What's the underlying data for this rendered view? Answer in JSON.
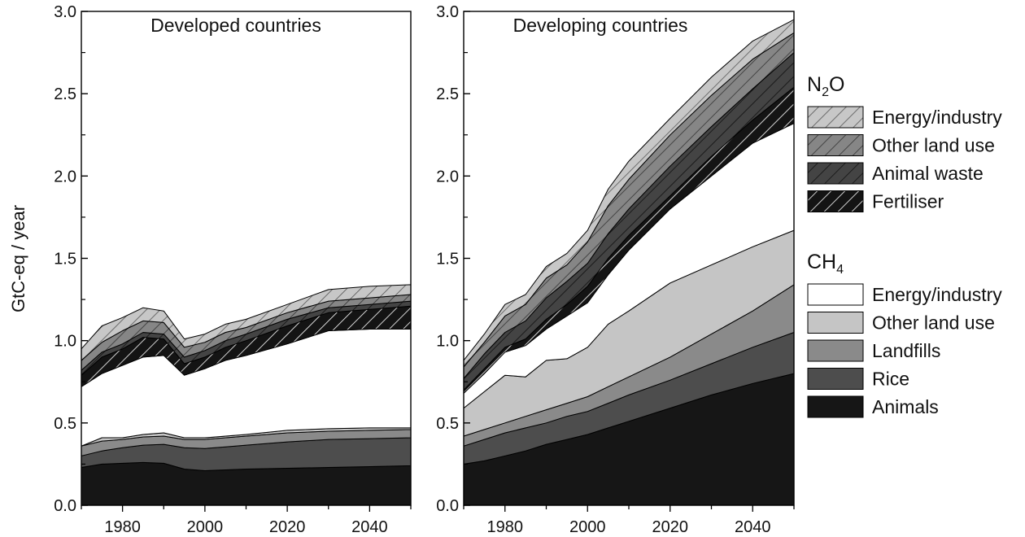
{
  "chart_data": {
    "type": "area",
    "stacked": true,
    "ylabel": "GtC-eq / year",
    "ylim": [
      0,
      3.0
    ],
    "yticks": [
      "0.0",
      "0.5",
      "1.0",
      "1.5",
      "2.0",
      "2.5",
      "3.0"
    ],
    "xlim": [
      1970,
      2050
    ],
    "xticks": [
      "1980",
      "2000",
      "2020",
      "2040"
    ],
    "x": [
      1970,
      1975,
      1980,
      1985,
      1990,
      1995,
      2000,
      2005,
      2010,
      2020,
      2030,
      2040,
      2050
    ],
    "legend": {
      "groups": [
        {
          "title_main": "N",
          "title_sub": "2",
          "title_end": "O",
          "entries": [
            "Energy/industry",
            "Other land use",
            "Animal waste",
            "Fertiliser"
          ]
        },
        {
          "title_main": "CH",
          "title_sub": "4",
          "title_end": "",
          "entries": [
            "Energy/industry",
            "Other land use",
            "Landfills",
            "Rice",
            "Animals"
          ]
        }
      ]
    },
    "series_order": [
      "CH4 Animals",
      "CH4 Rice",
      "CH4 Landfills",
      "CH4 Other land use",
      "CH4 Energy/industry",
      "N2O Fertiliser",
      "N2O Animal waste",
      "N2O Other land use",
      "N2O Energy/industry"
    ],
    "panels": [
      {
        "title": "Developed countries",
        "cumulative_tops": [
          [
            0.23,
            0.25,
            0.255,
            0.26,
            0.255,
            0.22,
            0.21,
            0.215,
            0.22,
            0.225,
            0.23,
            0.235,
            0.24
          ],
          [
            0.3,
            0.33,
            0.35,
            0.365,
            0.37,
            0.35,
            0.345,
            0.355,
            0.365,
            0.385,
            0.4,
            0.405,
            0.41
          ],
          [
            0.36,
            0.39,
            0.4,
            0.415,
            0.42,
            0.4,
            0.4,
            0.41,
            0.42,
            0.44,
            0.45,
            0.455,
            0.46
          ],
          [
            0.36,
            0.41,
            0.41,
            0.43,
            0.44,
            0.41,
            0.41,
            0.42,
            0.43,
            0.455,
            0.465,
            0.47,
            0.47
          ],
          [
            0.72,
            0.8,
            0.85,
            0.9,
            0.91,
            0.79,
            0.83,
            0.88,
            0.91,
            0.98,
            1.06,
            1.07,
            1.07
          ],
          [
            0.79,
            0.9,
            0.95,
            1.02,
            1.01,
            0.86,
            0.9,
            0.96,
            1.0,
            1.09,
            1.17,
            1.19,
            1.21
          ],
          [
            0.82,
            0.93,
            0.98,
            1.05,
            1.04,
            0.9,
            0.94,
            1.0,
            1.04,
            1.13,
            1.2,
            1.22,
            1.24
          ],
          [
            0.88,
            0.99,
            1.06,
            1.12,
            1.11,
            0.96,
            0.99,
            1.05,
            1.08,
            1.17,
            1.24,
            1.26,
            1.28
          ],
          [
            0.95,
            1.09,
            1.14,
            1.2,
            1.18,
            1.01,
            1.04,
            1.1,
            1.13,
            1.22,
            1.31,
            1.33,
            1.34
          ]
        ]
      },
      {
        "title": "Developing countries",
        "cumulative_tops": [
          [
            0.25,
            0.27,
            0.3,
            0.33,
            0.37,
            0.4,
            0.43,
            0.47,
            0.51,
            0.59,
            0.67,
            0.74,
            0.8
          ],
          [
            0.36,
            0.4,
            0.44,
            0.47,
            0.5,
            0.54,
            0.57,
            0.62,
            0.67,
            0.76,
            0.86,
            0.96,
            1.05
          ],
          [
            0.42,
            0.46,
            0.5,
            0.54,
            0.58,
            0.62,
            0.66,
            0.72,
            0.78,
            0.9,
            1.04,
            1.18,
            1.34
          ],
          [
            0.59,
            0.69,
            0.79,
            0.78,
            0.88,
            0.89,
            0.96,
            1.1,
            1.18,
            1.35,
            1.46,
            1.57,
            1.67
          ],
          [
            0.68,
            0.8,
            0.93,
            0.97,
            1.07,
            1.15,
            1.23,
            1.4,
            1.55,
            1.8,
            2.0,
            2.2,
            2.32
          ],
          [
            0.7,
            0.83,
            0.96,
            1.01,
            1.13,
            1.22,
            1.33,
            1.5,
            1.64,
            1.88,
            2.12,
            2.34,
            2.54
          ],
          [
            0.77,
            0.92,
            1.05,
            1.12,
            1.26,
            1.36,
            1.47,
            1.65,
            1.8,
            2.06,
            2.3,
            2.53,
            2.75
          ],
          [
            0.84,
            0.99,
            1.15,
            1.22,
            1.38,
            1.46,
            1.6,
            1.82,
            1.98,
            2.25,
            2.49,
            2.71,
            2.87
          ],
          [
            0.88,
            1.04,
            1.22,
            1.28,
            1.45,
            1.53,
            1.67,
            1.92,
            2.09,
            2.35,
            2.6,
            2.82,
            2.95
          ]
        ]
      }
    ]
  }
}
